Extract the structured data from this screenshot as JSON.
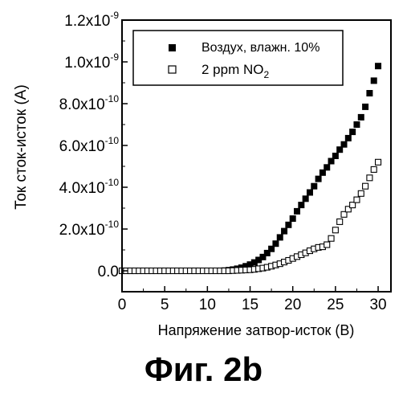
{
  "figure": {
    "caption": "Фиг. 2b"
  },
  "chart_data": {
    "type": "scatter",
    "xlabel": "Напряжение затвор-исток (В)",
    "ylabel": "Ток сток-исток (А)",
    "xlim": [
      0,
      31.5
    ],
    "ylim": [
      -1e-10,
      1.2e-09
    ],
    "x_ticks": [
      0,
      5,
      10,
      15,
      20,
      25,
      30
    ],
    "x_tick_labels": [
      "0",
      "5",
      "10",
      "15",
      "20",
      "25",
      "30"
    ],
    "y_ticks": [
      0,
      2e-10,
      4e-10,
      6e-10,
      8e-10,
      1e-09,
      1.2e-09
    ],
    "y_tick_labels": [
      {
        "mantissa": "0.0",
        "exp": ""
      },
      {
        "mantissa": "2.0x10",
        "exp": "-10"
      },
      {
        "mantissa": "4.0x10",
        "exp": "-10"
      },
      {
        "mantissa": "6.0x10",
        "exp": "-10"
      },
      {
        "mantissa": "8.0x10",
        "exp": "-10"
      },
      {
        "mantissa": "1.0x10",
        "exp": "-9"
      },
      {
        "mantissa": "1.2x10",
        "exp": "-9"
      }
    ],
    "legend": {
      "position": "top-left",
      "entries": [
        {
          "label": "Воздух, влажн. 10%",
          "sub": ""
        },
        {
          "label": "2 ppm NO",
          "sub": "2"
        }
      ]
    },
    "series": [
      {
        "name": "Воздух, влажн. 10%",
        "marker": "filled-square",
        "color": "#000000",
        "x": [
          0,
          0.5,
          1,
          1.5,
          2,
          2.5,
          3,
          3.5,
          4,
          4.5,
          5,
          5.5,
          6,
          6.5,
          7,
          7.5,
          8,
          8.5,
          9,
          9.5,
          10,
          10.5,
          11,
          11.5,
          12,
          12.5,
          13,
          13.5,
          14,
          14.5,
          15,
          15.5,
          16,
          16.5,
          17,
          17.5,
          18,
          18.5,
          19,
          19.5,
          20,
          20.5,
          21,
          21.5,
          22,
          22.5,
          23,
          23.5,
          24,
          24.5,
          25,
          25.5,
          26,
          26.5,
          27,
          27.5,
          28,
          28.5,
          29,
          29.5,
          30
        ],
        "y": [
          0,
          0,
          0,
          0,
          0,
          0,
          0,
          0,
          0,
          0,
          0,
          0,
          0,
          0,
          0,
          0,
          0,
          0,
          0,
          0,
          0,
          0,
          0,
          0,
          1e-12,
          3e-12,
          6e-12,
          1e-11,
          1.5e-11,
          2.2e-11,
          3e-11,
          4e-11,
          5.2e-11,
          6.6e-11,
          8.5e-11,
          1.05e-10,
          1.3e-10,
          1.6e-10,
          1.9e-10,
          2.2e-10,
          2.5e-10,
          2.85e-10,
          3.15e-10,
          3.45e-10,
          3.75e-10,
          4.05e-10,
          4.4e-10,
          4.7e-10,
          4.95e-10,
          5.25e-10,
          5.5e-10,
          5.8e-10,
          6.05e-10,
          6.35e-10,
          6.65e-10,
          7e-10,
          7.35e-10,
          7.85e-10,
          8.5e-10,
          9.1e-10,
          9.8e-10
        ]
      },
      {
        "name": "2 ppm NO2",
        "marker": "open-square",
        "color": "#000000",
        "x": [
          0,
          0.5,
          1,
          1.5,
          2,
          2.5,
          3,
          3.5,
          4,
          4.5,
          5,
          5.5,
          6,
          6.5,
          7,
          7.5,
          8,
          8.5,
          9,
          9.5,
          10,
          10.5,
          11,
          11.5,
          12,
          12.5,
          13,
          13.5,
          14,
          14.5,
          15,
          15.5,
          16,
          16.5,
          17,
          17.5,
          18,
          18.5,
          19,
          19.5,
          20,
          20.5,
          21,
          21.5,
          22,
          22.5,
          23,
          23.5,
          24,
          24.5,
          25,
          25.5,
          26,
          26.5,
          27,
          27.5,
          28,
          28.5,
          29,
          29.5,
          30
        ],
        "y": [
          0,
          0,
          0,
          0,
          0,
          0,
          0,
          0,
          0,
          0,
          0,
          0,
          0,
          0,
          0,
          0,
          0,
          0,
          0,
          0,
          0,
          0,
          0,
          0,
          0,
          0,
          1e-12,
          2e-12,
          3e-12,
          4e-12,
          5e-12,
          7e-12,
          1e-11,
          1.3e-11,
          1.7e-11,
          2.2e-11,
          2.8e-11,
          3.4e-11,
          4.2e-11,
          5e-11,
          5.9e-11,
          6.8e-11,
          7.7e-11,
          8.6e-11,
          9.6e-11,
          1.05e-10,
          1.12e-10,
          1.15e-10,
          1.25e-10,
          1.55e-10,
          1.95e-10,
          2.35e-10,
          2.7e-10,
          2.95e-10,
          3.15e-10,
          3.4e-10,
          3.7e-10,
          4.05e-10,
          4.45e-10,
          4.85e-10,
          5.2e-10
        ]
      }
    ]
  }
}
